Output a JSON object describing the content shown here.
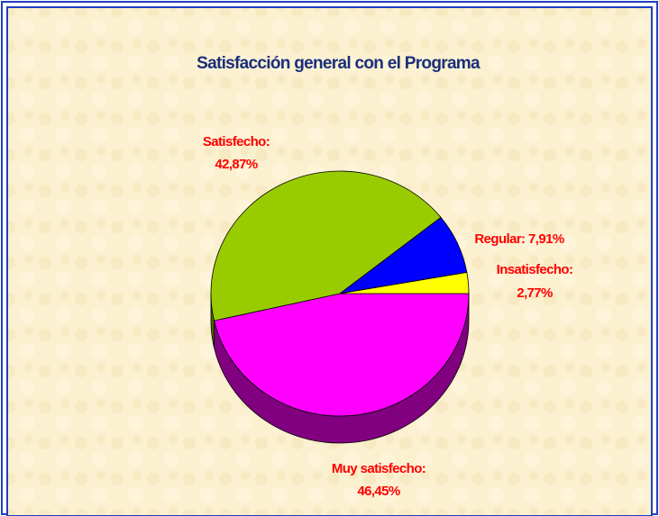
{
  "chart_data": {
    "type": "pie",
    "title": "Satisfacción general con el Programa",
    "categories": [
      "Muy satisfecho:",
      "Satisfecho:",
      "Regular:",
      "Insatisfecho:"
    ],
    "values": [
      46.45,
      42.87,
      7.91,
      2.77
    ],
    "value_labels": [
      "46,45%",
      "42,87%",
      "7,91%",
      "2,77%"
    ],
    "colors": [
      "#ff00ff",
      "#99cc00",
      "#0000ff",
      "#ffff00"
    ]
  }
}
